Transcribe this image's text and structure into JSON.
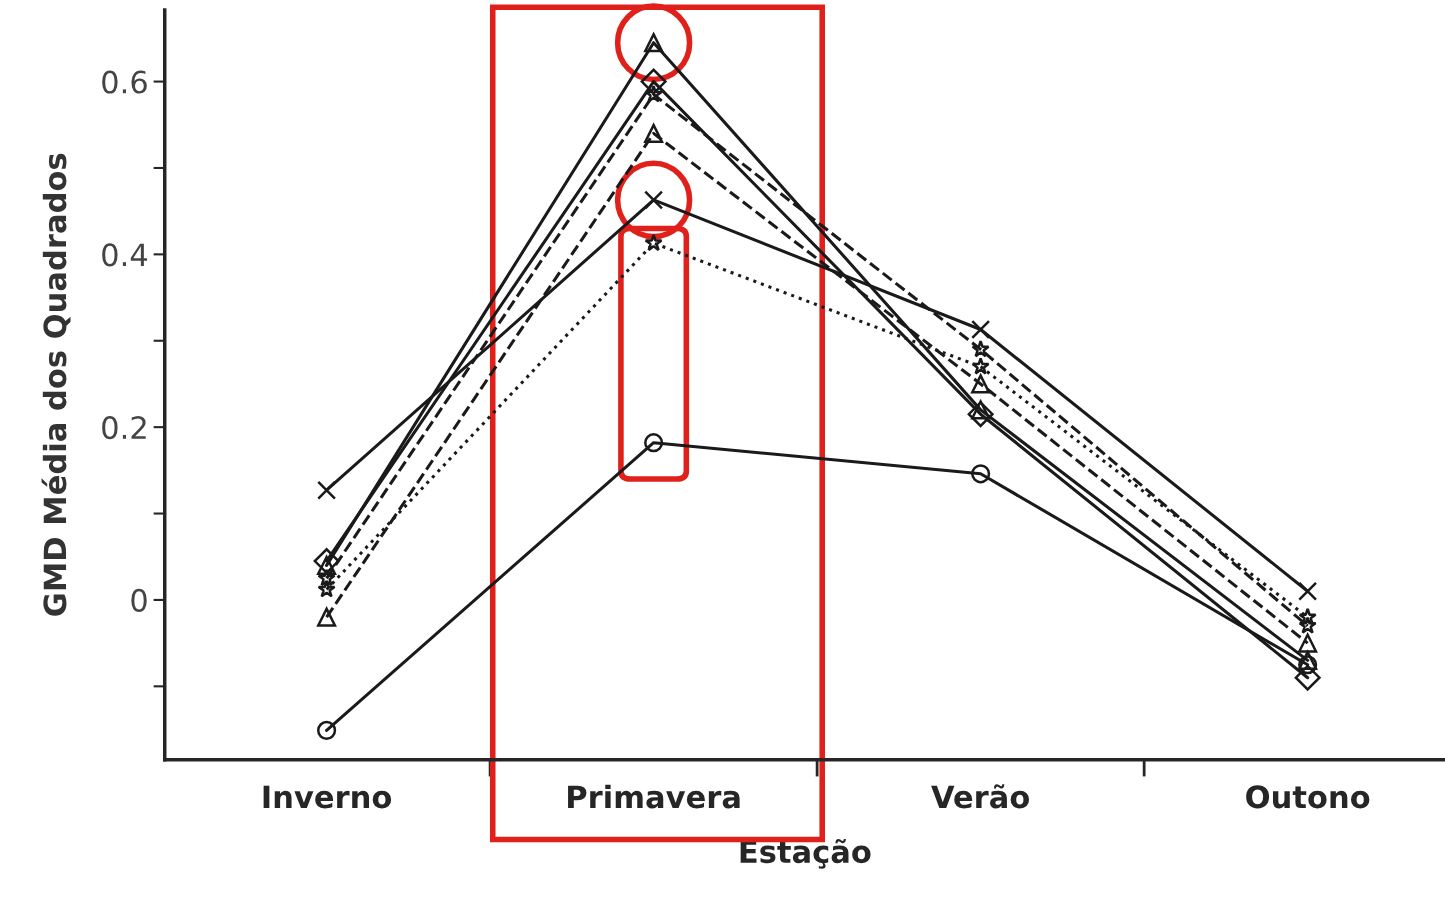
{
  "chart_data": {
    "type": "line",
    "xlabel": "Estação",
    "ylabel": "GMD Média dos Quadrados",
    "categories": [
      "Inverno",
      "Primavera",
      "Verão",
      "Outono"
    ],
    "series": [
      {
        "color": "#1a1a1a",
        "marker": "circle",
        "line_style": "solid",
        "values": [
          -0.151,
          0.182,
          0.146,
          -0.075
        ]
      },
      {
        "color": "#1a1a1a",
        "marker": "cross",
        "line_style": "solid",
        "values": [
          0.127,
          0.463,
          0.313,
          0.01
        ]
      },
      {
        "color": "#1a1a1a",
        "marker": "star",
        "line_style": "dotted",
        "values": [
          0.012,
          0.413,
          0.27,
          -0.02
        ]
      },
      {
        "color": "#1a1a1a",
        "marker": "triangle",
        "line_style": "dashed",
        "values": [
          -0.02,
          0.54,
          0.25,
          -0.05
        ]
      },
      {
        "color": "#1a1a1a",
        "marker": "triangle",
        "line_style": "solid",
        "values": [
          0.04,
          0.645,
          0.22,
          -0.07
        ]
      },
      {
        "color": "#1a1a1a",
        "marker": "diamond",
        "line_style": "solid",
        "values": [
          0.045,
          0.6,
          0.215,
          -0.09
        ]
      },
      {
        "color": "#1a1a1a",
        "marker": "star",
        "line_style": "dashed",
        "values": [
          0.025,
          0.585,
          0.29,
          -0.03
        ]
      }
    ],
    "ylim": [
      -0.185,
      0.683
    ],
    "yticks": [
      {
        "value": -0.1,
        "label": null
      },
      0,
      {
        "value": 0.1,
        "label": null
      },
      0.2,
      {
        "value": 0.3,
        "label": null
      },
      0.4,
      {
        "value": 0.5,
        "label": null
      },
      0.6
    ],
    "grid": false,
    "legend": false
  }
}
